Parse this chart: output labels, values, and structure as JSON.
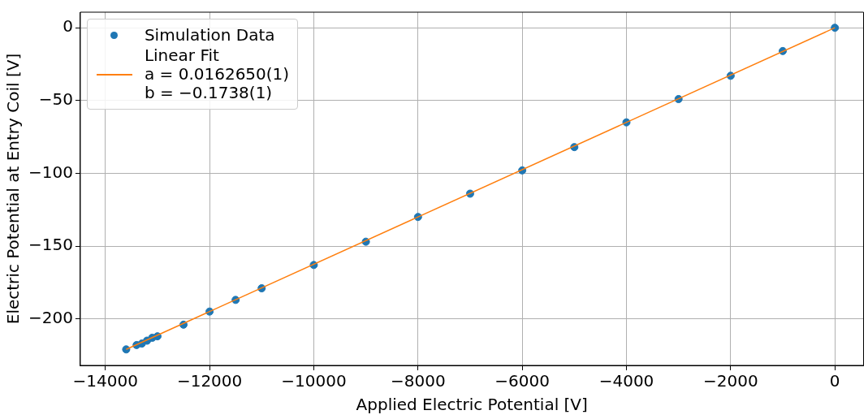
{
  "chart_data": {
    "type": "scatter",
    "xlabel": "Applied Electric Potential [V]",
    "ylabel": "Electric Potential at Entry Coil [V]",
    "xlim": [
      -14480,
      550
    ],
    "xticks": [
      -14000,
      -12000,
      -10000,
      -8000,
      -6000,
      -4000,
      -2000,
      0
    ],
    "ylim": [
      -232,
      10.7
    ],
    "yticks": [
      -200,
      -150,
      -100,
      -50,
      0
    ],
    "grid": true,
    "legend": "top left",
    "series": [
      {
        "name": "Simulation Data",
        "type": "scatter",
        "marker": "circle",
        "color": "#1f77b4",
        "x": [
          0,
          -1000,
          -2000,
          -3000,
          -4000,
          -5000,
          -6000,
          -7000,
          -8000,
          -9000,
          -10000,
          -11000,
          -11500,
          -12000,
          -12500,
          -13000,
          -13100,
          -13200,
          -13300,
          -13400,
          -13600
        ],
        "values": [
          0,
          -16,
          -33,
          -49,
          -65,
          -82,
          -98,
          -114,
          -130,
          -147,
          -163,
          -179,
          -187,
          -195,
          -204,
          -212,
          -213,
          -215,
          -217,
          -218,
          -221
        ]
      },
      {
        "name": "Linear Fit\na = 0.0162650(1)\nb = −0.1738(1)",
        "type": "line",
        "marker": "none",
        "line_style": "solid",
        "color": "#ff7f0e",
        "x": [
          -13600,
          0
        ],
        "values": [
          -221,
          0
        ]
      }
    ]
  }
}
